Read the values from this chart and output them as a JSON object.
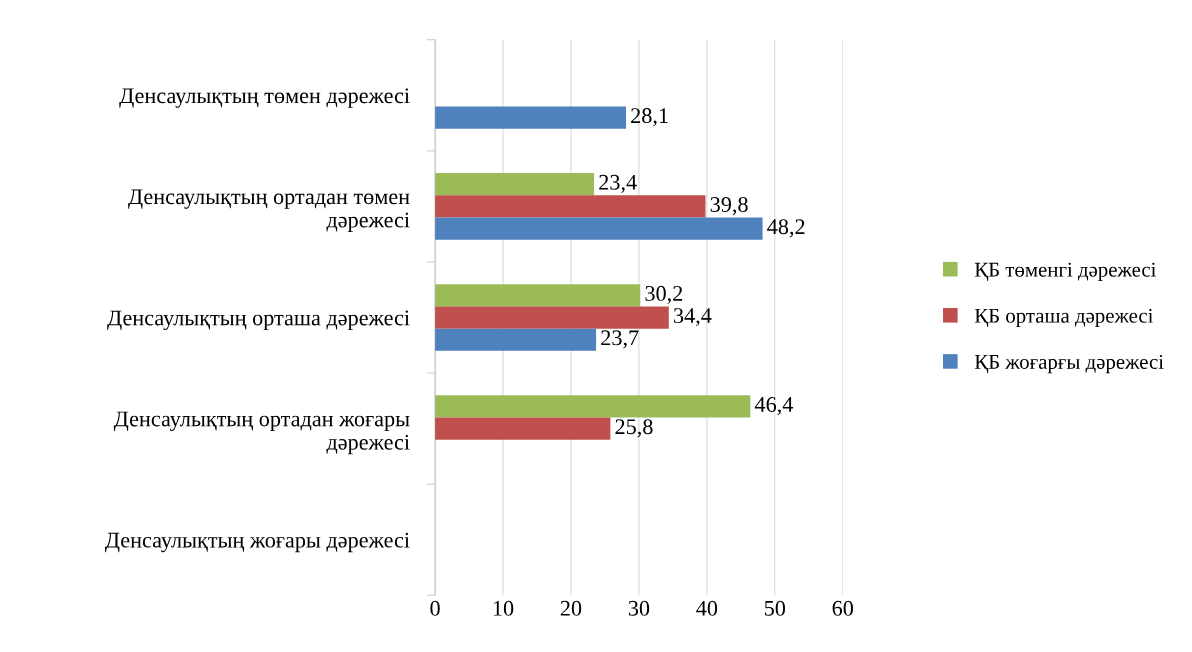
{
  "chart_data": {
    "type": "bar",
    "orientation": "horizontal",
    "categories": [
      "Денсаулықтың төмен дәрежесі",
      "Денсаулықтың ортадан төмен\nдәрежесі",
      "Денсаулықтың орташа дәрежесі",
      "Денсаулықтың ортадан жоғары\nдәрежесі",
      "Денсаулықтың жоғары дәрежесі"
    ],
    "series": [
      {
        "name": "ҚБ төменгі дәрежесі",
        "color": "#9bbb59",
        "values": [
          null,
          23.4,
          30.2,
          46.4,
          null
        ],
        "value_labels": [
          null,
          "23,4",
          "30,2",
          "46,4",
          null
        ]
      },
      {
        "name": "ҚБ орташа дәрежесі",
        "color": "#c0504d",
        "values": [
          null,
          39.8,
          34.4,
          25.8,
          null
        ],
        "value_labels": [
          null,
          "39,8",
          "34,4",
          "25,8",
          null
        ]
      },
      {
        "name": "ҚБ жоғарғы дәрежесі",
        "color": "#4f81bd",
        "values": [
          28.1,
          48.2,
          23.7,
          null,
          null
        ],
        "value_labels": [
          "28,1",
          "48,2",
          "23,7",
          null,
          null
        ]
      }
    ],
    "xlim": [
      0,
      60
    ],
    "xticks": [
      0,
      10,
      20,
      30,
      40,
      50,
      60
    ],
    "grid": "x",
    "legend": "right"
  }
}
